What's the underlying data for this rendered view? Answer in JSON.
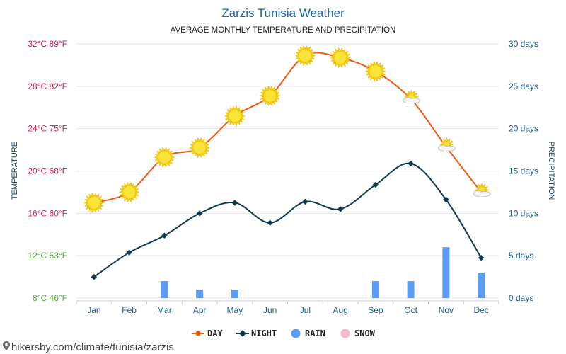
{
  "header": {
    "title": "Zarzis Tunisia Weather",
    "subtitle": "AVERAGE MONTHLY TEMPERATURE AND PRECIPITATION"
  },
  "footer": {
    "url": "hikersby.com/climate/tunisia/zarzis"
  },
  "colors": {
    "title": "#1565a8",
    "day": "#f05a12",
    "night": "#0e3a52",
    "rain": "#5b9cf5",
    "snow": "#f7b8cc",
    "temp_hot": "#e0194f",
    "temp_mild": "#7a9d1a",
    "temp_cool": "#4caf28",
    "precip_axis": "#1d5e8a",
    "grid": "#e4e4e4"
  },
  "chart_data": {
    "type": "line",
    "title": "Zarzis Tunisia Weather",
    "subtitle": "AVERAGE MONTHLY TEMPERATURE AND PRECIPITATION",
    "categories": [
      "Jan",
      "Feb",
      "Mar",
      "Apr",
      "May",
      "Jun",
      "Jul",
      "Aug",
      "Sep",
      "Oct",
      "Nov",
      "Dec"
    ],
    "y_left": {
      "label": "TEMPERATURE",
      "unit": "°C",
      "ylim": [
        8,
        32
      ],
      "ticks": [
        {
          "value": 8,
          "label": "8°C 46°F",
          "color": "#4caf28"
        },
        {
          "value": 12,
          "label": "12°C 53°F",
          "color": "#4caf28"
        },
        {
          "value": 16,
          "label": "16°C 60°F",
          "color": "#e0194f"
        },
        {
          "value": 20,
          "label": "20°C 68°F",
          "color": "#e0194f"
        },
        {
          "value": 24,
          "label": "24°C 75°F",
          "color": "#e0194f"
        },
        {
          "value": 28,
          "label": "28°C 82°F",
          "color": "#e0194f"
        },
        {
          "value": 32,
          "label": "32°C 89°F",
          "color": "#e0194f"
        }
      ]
    },
    "y_right": {
      "label": "PRECIPITATION",
      "unit": "days",
      "ylim": [
        0,
        30
      ],
      "ticks": [
        {
          "value": 0,
          "label": "0 days"
        },
        {
          "value": 5,
          "label": "5 days"
        },
        {
          "value": 10,
          "label": "10 days"
        },
        {
          "value": 15,
          "label": "15 days"
        },
        {
          "value": 20,
          "label": "20 days"
        },
        {
          "value": 25,
          "label": "25 days"
        },
        {
          "value": 30,
          "label": "30 days"
        }
      ]
    },
    "series": [
      {
        "name": "DAY",
        "axis": "left",
        "kind": "line",
        "values": [
          17.0,
          18.0,
          21.3,
          22.2,
          25.2,
          27.1,
          30.9,
          30.7,
          29.4,
          26.8,
          22.3,
          18.0
        ]
      },
      {
        "name": "NIGHT",
        "axis": "left",
        "kind": "line",
        "values": [
          10.0,
          12.3,
          13.9,
          16.0,
          17.0,
          15.1,
          17.1,
          16.4,
          18.7,
          20.7,
          17.3,
          11.8
        ]
      },
      {
        "name": "RAIN",
        "axis": "right",
        "kind": "bar",
        "values": [
          0,
          0,
          2,
          1,
          1,
          0,
          0,
          0,
          2,
          2,
          6,
          3
        ]
      },
      {
        "name": "SNOW",
        "axis": "right",
        "kind": "bar",
        "values": [
          0,
          0,
          0,
          0,
          0,
          0,
          0,
          0,
          0,
          0,
          0,
          0
        ]
      }
    ],
    "weather_icons": [
      "sun",
      "sun",
      "sun",
      "sun",
      "sun",
      "sun",
      "sun",
      "sun",
      "sun",
      "partly-cloudy",
      "partly-cloudy",
      "partly-cloudy"
    ],
    "grid": true,
    "legend": "bottom-center"
  }
}
